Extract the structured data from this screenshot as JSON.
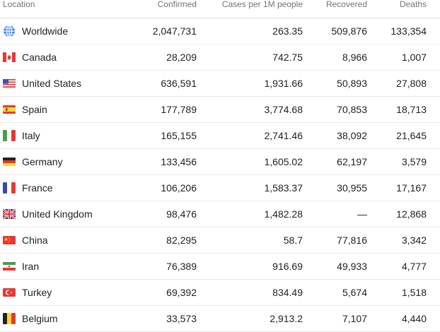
{
  "table": {
    "headers": {
      "location": "Location",
      "confirmed": "Confirmed",
      "cases_per_1m": "Cases per 1M people",
      "recovered": "Recovered",
      "deaths": "Deaths"
    },
    "rows": [
      {
        "icon": "globe-icon",
        "location": "Worldwide",
        "confirmed": "2,047,731",
        "cases_per_1m": "263.35",
        "recovered": "509,876",
        "deaths": "133,354"
      },
      {
        "icon": "flag-canada-icon",
        "location": "Canada",
        "confirmed": "28,209",
        "cases_per_1m": "742.75",
        "recovered": "8,966",
        "deaths": "1,007"
      },
      {
        "icon": "flag-united-states-icon",
        "location": "United States",
        "confirmed": "636,591",
        "cases_per_1m": "1,931.66",
        "recovered": "50,893",
        "deaths": "27,808"
      },
      {
        "icon": "flag-spain-icon",
        "location": "Spain",
        "confirmed": "177,789",
        "cases_per_1m": "3,774.68",
        "recovered": "70,853",
        "deaths": "18,713"
      },
      {
        "icon": "flag-italy-icon",
        "location": "Italy",
        "confirmed": "165,155",
        "cases_per_1m": "2,741.46",
        "recovered": "38,092",
        "deaths": "21,645"
      },
      {
        "icon": "flag-germany-icon",
        "location": "Germany",
        "confirmed": "133,456",
        "cases_per_1m": "1,605.02",
        "recovered": "62,197",
        "deaths": "3,579"
      },
      {
        "icon": "flag-france-icon",
        "location": "France",
        "confirmed": "106,206",
        "cases_per_1m": "1,583.37",
        "recovered": "30,955",
        "deaths": "17,167"
      },
      {
        "icon": "flag-united-kingdom-icon",
        "location": "United Kingdom",
        "confirmed": "98,476",
        "cases_per_1m": "1,482.28",
        "recovered": "—",
        "deaths": "12,868"
      },
      {
        "icon": "flag-china-icon",
        "location": "China",
        "confirmed": "82,295",
        "cases_per_1m": "58.7",
        "recovered": "77,816",
        "deaths": "3,342"
      },
      {
        "icon": "flag-iran-icon",
        "location": "Iran",
        "confirmed": "76,389",
        "cases_per_1m": "916.69",
        "recovered": "49,933",
        "deaths": "4,777"
      },
      {
        "icon": "flag-turkey-icon",
        "location": "Turkey",
        "confirmed": "69,392",
        "cases_per_1m": "834.49",
        "recovered": "5,674",
        "deaths": "1,518"
      },
      {
        "icon": "flag-belgium-icon",
        "location": "Belgium",
        "confirmed": "33,573",
        "cases_per_1m": "2,913.2",
        "recovered": "7,107",
        "deaths": "4,440"
      }
    ]
  }
}
